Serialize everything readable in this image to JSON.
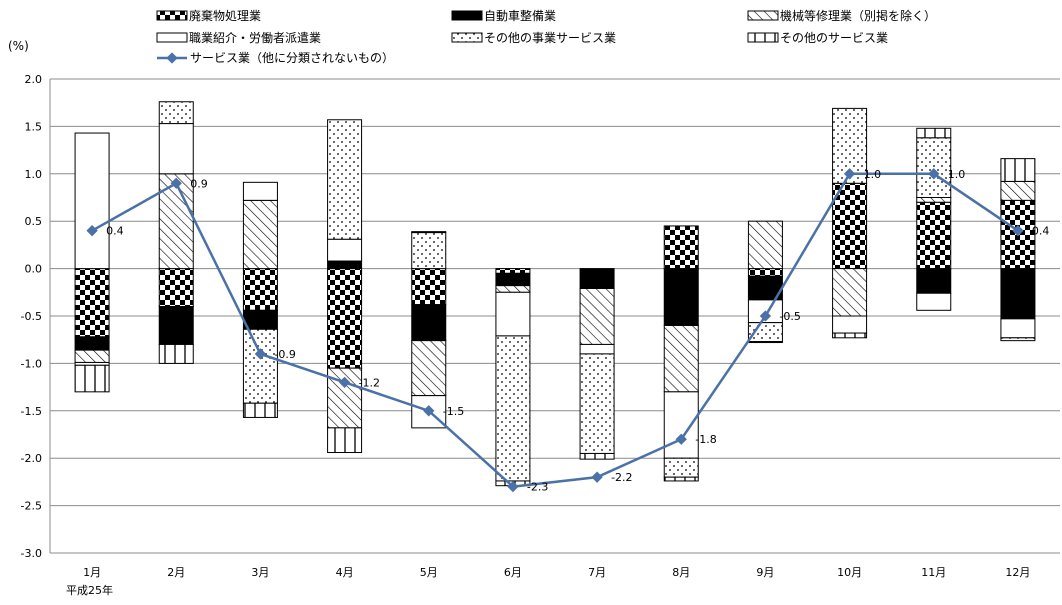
{
  "chart_data": {
    "type": "bar",
    "stacked": true,
    "combo_line": true,
    "ylabel": "(%)",
    "xlabel_sub": "平成25年",
    "ylim": [
      -3.0,
      2.0
    ],
    "ytick_step": 0.5,
    "grid": "horizontal",
    "legend_position": "top",
    "categories": [
      "1月",
      "2月",
      "3月",
      "4月",
      "5月",
      "6月",
      "7月",
      "8月",
      "9月",
      "10月",
      "11月",
      "12月"
    ],
    "series": [
      {
        "name": "廃棄物処理業",
        "pattern": "checker",
        "values": [
          -0.72,
          -0.4,
          -0.44,
          -1.05,
          -0.38,
          -0.05,
          0.0,
          0.45,
          -0.08,
          0.9,
          0.7,
          0.72
        ]
      },
      {
        "name": "自動車整備業",
        "pattern": "solid",
        "values": [
          -0.14,
          -0.4,
          -0.2,
          0.08,
          -0.38,
          -0.13,
          -0.21,
          -0.6,
          -0.25,
          0.0,
          -0.26,
          -0.53
        ]
      },
      {
        "name": "機械等修理業（別掲を除く）",
        "pattern": "diagonal",
        "values": [
          -0.13,
          1.0,
          0.72,
          -0.63,
          -0.58,
          -0.07,
          -0.59,
          -0.7,
          0.5,
          -0.5,
          0.05,
          0.2
        ]
      },
      {
        "name": "職業紹介・労働者派遣業",
        "pattern": "white",
        "values": [
          1.43,
          0.53,
          0.19,
          0.23,
          -0.34,
          -0.46,
          -0.1,
          -0.7,
          -0.24,
          -0.18,
          -0.18,
          -0.2
        ]
      },
      {
        "name": "その他の事業サービス業",
        "pattern": "dots",
        "values": [
          -0.03,
          0.23,
          -0.78,
          1.26,
          0.38,
          -1.53,
          -1.05,
          -0.2,
          -0.2,
          0.79,
          0.63,
          -0.03
        ]
      },
      {
        "name": "その他のサービス業",
        "pattern": "vertical",
        "values": [
          -0.28,
          -0.2,
          -0.15,
          -0.26,
          0.01,
          -0.05,
          -0.06,
          -0.04,
          -0.01,
          -0.05,
          0.1,
          0.24
        ]
      }
    ],
    "line_series": {
      "name": "サービス業（他に分類されないもの）",
      "color": "#4a72a8",
      "values": [
        0.4,
        0.9,
        -0.9,
        -1.2,
        -1.5,
        -2.3,
        -2.2,
        -1.8,
        -0.5,
        1.0,
        1.0,
        0.4
      ],
      "labels": [
        "0.4",
        "0.9",
        "-0.9",
        "-1.2",
        "-1.5",
        "-2.3",
        "-2.2",
        "-1.8",
        "-0.5",
        "1.0",
        "1.0",
        "0.4"
      ]
    },
    "yticks": [
      "2.0",
      "1.5",
      "1.0",
      "0.5",
      "0.0",
      "-0.5",
      "-1.0",
      "-1.5",
      "-2.0",
      "-2.5",
      "-3.0"
    ]
  }
}
